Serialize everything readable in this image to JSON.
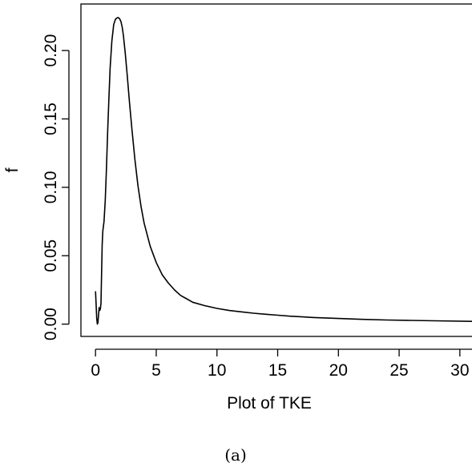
{
  "chart_data": {
    "type": "line",
    "title": "",
    "xlabel": "Plot of TKE",
    "ylabel": "f",
    "caption": "(a)",
    "xlim": [
      -1.2,
      31
    ],
    "ylim": [
      -0.009,
      0.234
    ],
    "x_ticks": [
      0,
      5,
      10,
      15,
      20,
      25,
      30
    ],
    "x_tick_labels": [
      "0",
      "5",
      "10",
      "15",
      "20",
      "25",
      "30"
    ],
    "y_ticks": [
      0.0,
      0.05,
      0.1,
      0.15,
      0.2
    ],
    "y_tick_labels": [
      "0.00",
      "0.05",
      "0.10",
      "0.15",
      "0.20"
    ],
    "grid": false,
    "series": [
      {
        "color": "#000000",
        "x": [
          0.0,
          0.05,
          0.1,
          0.15,
          0.2,
          0.25,
          0.3,
          0.35,
          0.4,
          0.45,
          0.5,
          0.55,
          0.6,
          0.7,
          0.8,
          0.9,
          1.0,
          1.1,
          1.2,
          1.35,
          1.5,
          1.65,
          1.8,
          1.9,
          2.0,
          2.1,
          2.2,
          2.3,
          2.45,
          2.6,
          2.8,
          3.0,
          3.25,
          3.5,
          3.75,
          4.0,
          4.5,
          5.0,
          5.5,
          6.0,
          6.5,
          7.0,
          7.5,
          8.0,
          9.0,
          10.0,
          11.0,
          12.0,
          13.0,
          14.0,
          15.0,
          16.0,
          18.0,
          20.0,
          22.0,
          24.0,
          26.0,
          28.0,
          31.0
        ],
        "y": [
          0.024,
          0.015,
          0.004,
          0.0,
          0.001,
          0.007,
          0.012,
          0.01,
          0.011,
          0.015,
          0.038,
          0.058,
          0.068,
          0.075,
          0.09,
          0.113,
          0.14,
          0.165,
          0.187,
          0.207,
          0.219,
          0.223,
          0.224,
          0.224,
          0.223,
          0.221,
          0.217,
          0.211,
          0.198,
          0.183,
          0.162,
          0.142,
          0.12,
          0.101,
          0.086,
          0.074,
          0.057,
          0.045,
          0.036,
          0.03,
          0.025,
          0.021,
          0.0185,
          0.016,
          0.0135,
          0.0115,
          0.01,
          0.009,
          0.008,
          0.0072,
          0.0065,
          0.0058,
          0.0048,
          0.0041,
          0.0035,
          0.003,
          0.0027,
          0.0024,
          0.002
        ]
      }
    ]
  }
}
